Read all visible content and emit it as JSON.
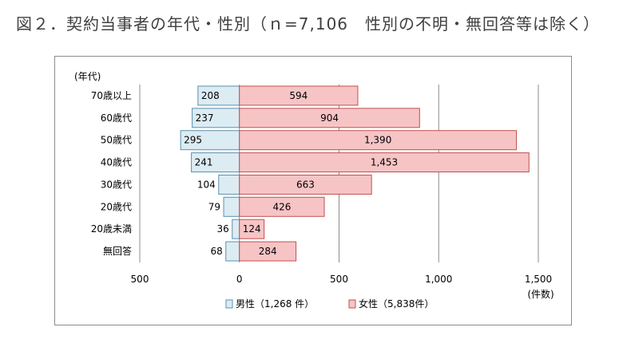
{
  "figure_title": "図２．契約当事者の年代・性別（ｎ=7,106　性別の不明・無回答等は除く）",
  "chart_data": {
    "type": "bar",
    "orientation": "horizontal-population-pyramid",
    "y_axis_title": "(年代)",
    "x_axis_unit": "(件数)",
    "categories": [
      "70歳以上",
      "60歳代",
      "50歳代",
      "40歳代",
      "30歳代",
      "20歳代",
      "20歳未満",
      "無回答"
    ],
    "series": [
      {
        "name": "男性（1,268 件）",
        "values": [
          208,
          237,
          295,
          241,
          104,
          79,
          36,
          68
        ],
        "color": "#dcecf3",
        "stroke": "#5b8fb0",
        "direction": "left"
      },
      {
        "name": "女性（5,838件）",
        "values": [
          594,
          904,
          1390,
          1453,
          663,
          426,
          124,
          284
        ],
        "color": "#f7c4c6",
        "stroke": "#c0504d",
        "direction": "right"
      }
    ],
    "x_ticks": [
      {
        "value": -500,
        "label": "500"
      },
      {
        "value": 0,
        "label": "0"
      },
      {
        "value": 500,
        "label": "500"
      },
      {
        "value": 1000,
        "label": "1,000"
      },
      {
        "value": 1500,
        "label": "1,500"
      }
    ],
    "xlim": [
      -500,
      1500
    ],
    "grid": true,
    "legend_position": "bottom-center"
  }
}
